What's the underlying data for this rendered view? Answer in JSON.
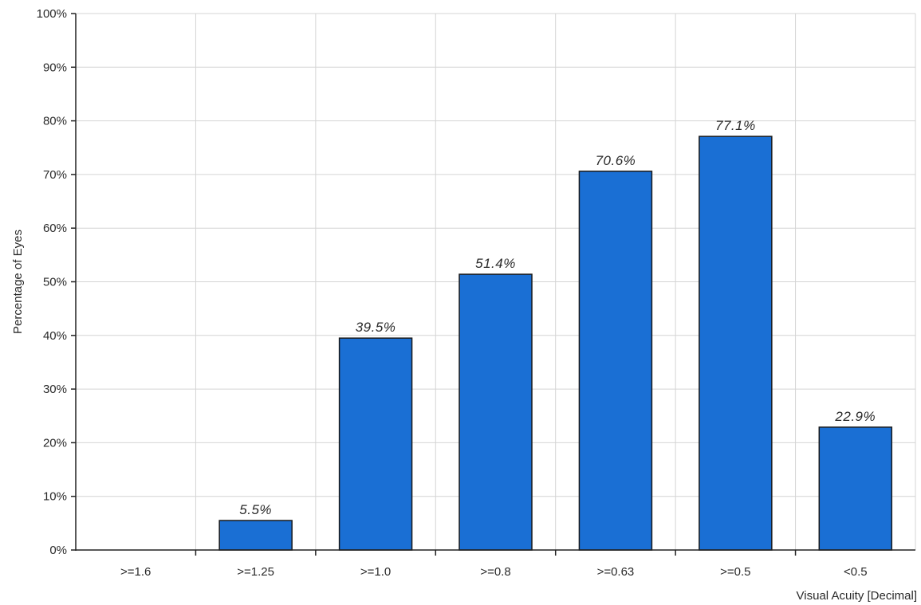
{
  "chart_data": {
    "type": "bar",
    "categories": [
      ">=1.6",
      ">=1.25",
      ">=1.0",
      ">=0.8",
      ">=0.63",
      ">=0.5",
      "<0.5"
    ],
    "values": [
      0,
      5.5,
      39.5,
      51.4,
      70.6,
      77.1,
      22.9
    ],
    "data_labels": [
      "",
      "5.5%",
      "39.5%",
      "51.4%",
      "70.6%",
      "77.1%",
      "22.9%"
    ],
    "xlabel": "Visual Acuity [Decimal]",
    "ylabel": "Percentage of Eyes",
    "ylim": [
      0,
      100
    ],
    "y_ticks": [
      0,
      10,
      20,
      30,
      40,
      50,
      60,
      70,
      80,
      90,
      100
    ],
    "y_tick_labels": [
      "0%",
      "10%",
      "20%",
      "30%",
      "40%",
      "50%",
      "60%",
      "70%",
      "80%",
      "90%",
      "100%"
    ],
    "grid": true,
    "colors": {
      "bar": "#1a6fd4",
      "grid": "#d4d4d4",
      "axis": "#222222"
    }
  }
}
